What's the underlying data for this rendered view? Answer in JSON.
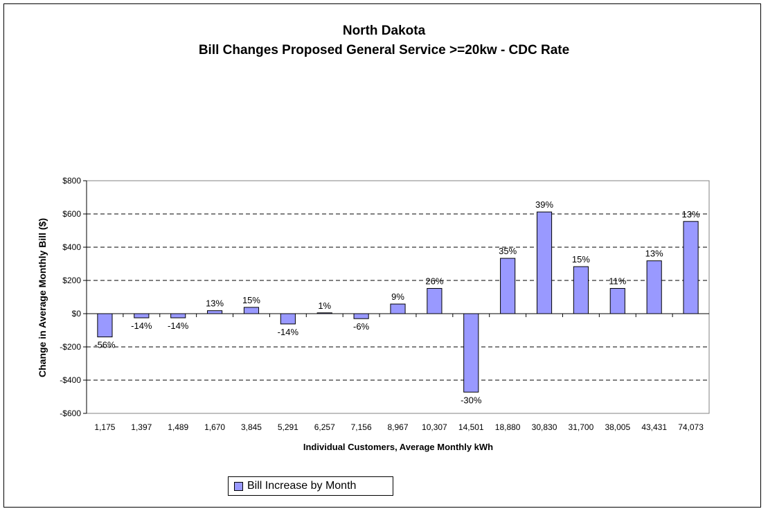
{
  "chart_data": {
    "type": "bar",
    "title": "North Dakota",
    "subtitle": "Bill Changes Proposed General Service >=20kw - CDC Rate",
    "xlabel": "Individual Customers, Average Monthly kWh",
    "ylabel": "Change in Average Monthly Bill  ($)",
    "categories": [
      "1,175",
      "1,397",
      "1,489",
      "1,670",
      "3,845",
      "5,291",
      "6,257",
      "7,156",
      "8,967",
      "10,307",
      "14,501",
      "18,880",
      "30,830",
      "31,700",
      "38,005",
      "43,431",
      "74,073"
    ],
    "series": [
      {
        "name": "Bill Increase by Month",
        "values": [
          -140,
          -25,
          -25,
          18,
          38,
          -62,
          5,
          -30,
          58,
          152,
          -472,
          333,
          612,
          283,
          152,
          318,
          555
        ],
        "labels": [
          "-56%",
          "-14%",
          "-14%",
          "13%",
          "15%",
          "-14%",
          "1%",
          "-6%",
          "9%",
          "26%",
          "-30%",
          "35%",
          "39%",
          "15%",
          "11%",
          "13%",
          "13%"
        ]
      }
    ],
    "ylim": [
      -600,
      800
    ],
    "yticks": [
      -600,
      -400,
      -200,
      0,
      200,
      400,
      600,
      800
    ],
    "ytick_labels": [
      "-$600",
      "-$400",
      "-$200",
      "$0",
      "$200",
      "$400",
      "$600",
      "$800"
    ],
    "grid": "horizontal dashed",
    "legend_position": "bottom-left",
    "colors": {
      "bar": "#9999ff",
      "bar_border": "#000000",
      "grid": "#000000"
    }
  }
}
